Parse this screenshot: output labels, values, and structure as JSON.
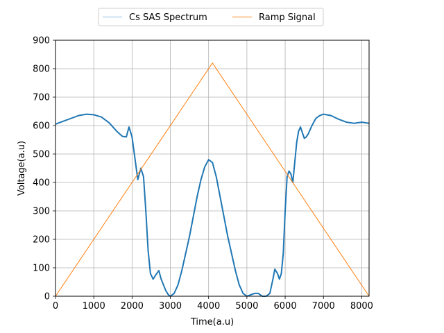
{
  "chart_data": {
    "type": "line",
    "title": "",
    "xlabel": "Time(a.u)",
    "ylabel": "Voltage(a.u)",
    "xlim": [
      0,
      8192
    ],
    "ylim": [
      0,
      900
    ],
    "xticks": [
      0,
      1000,
      2000,
      3000,
      4000,
      5000,
      6000,
      7000,
      8000
    ],
    "yticks": [
      0,
      100,
      200,
      300,
      400,
      500,
      600,
      700,
      800,
      900
    ],
    "grid": true,
    "legend": {
      "position": "top-center",
      "columns": 2
    },
    "series": [
      {
        "name": "Cs SAS Spectrum",
        "color": "#1f77b4",
        "x": [
          0,
          200,
          400,
          600,
          800,
          1000,
          1200,
          1400,
          1600,
          1750,
          1850,
          1920,
          2000,
          2080,
          2150,
          2230,
          2300,
          2360,
          2420,
          2480,
          2550,
          2620,
          2700,
          2760,
          2820,
          2880,
          2950,
          3000,
          3100,
          3200,
          3300,
          3400,
          3500,
          3600,
          3700,
          3800,
          3900,
          4000,
          4100,
          4200,
          4300,
          4400,
          4500,
          4600,
          4700,
          4800,
          4900,
          5000,
          5100,
          5200,
          5300,
          5400,
          5500,
          5600,
          5680,
          5730,
          5800,
          5850,
          5900,
          5950,
          6000,
          6050,
          6100,
          6150,
          6200,
          6250,
          6300,
          6350,
          6400,
          6450,
          6500,
          6550,
          6600,
          6700,
          6800,
          6900,
          7000,
          7200,
          7400,
          7600,
          7800,
          8000,
          8192
        ],
        "y": [
          605,
          615,
          625,
          635,
          640,
          638,
          630,
          610,
          580,
          562,
          560,
          595,
          560,
          480,
          410,
          450,
          420,
          300,
          160,
          80,
          60,
          75,
          90,
          60,
          40,
          20,
          5,
          0,
          10,
          40,
          90,
          150,
          210,
          280,
          350,
          410,
          455,
          480,
          470,
          420,
          350,
          280,
          210,
          150,
          90,
          40,
          10,
          0,
          5,
          10,
          10,
          0,
          0,
          10,
          60,
          95,
          80,
          60,
          80,
          150,
          300,
          420,
          440,
          430,
          400,
          470,
          540,
          580,
          595,
          575,
          555,
          560,
          570,
          600,
          625,
          635,
          640,
          635,
          622,
          612,
          608,
          612,
          608
        ]
      },
      {
        "name": "Ramp Signal",
        "color": "#ff7f0e",
        "x": [
          0,
          4100,
          8192
        ],
        "y": [
          0,
          820,
          0
        ]
      }
    ]
  }
}
